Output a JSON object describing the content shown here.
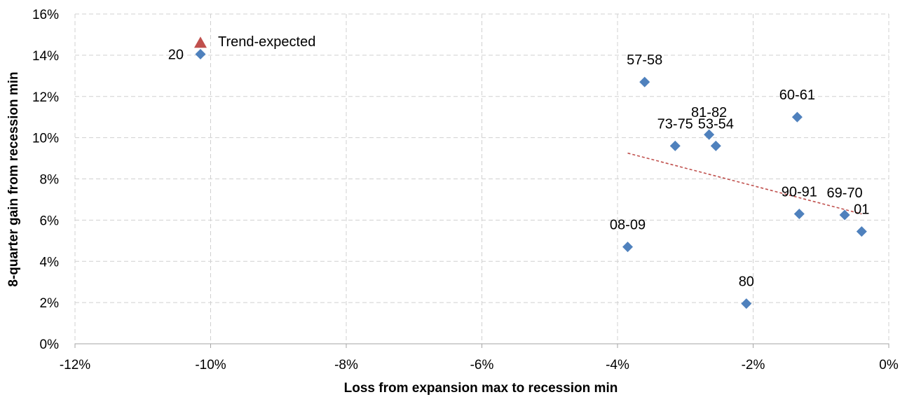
{
  "chart_data": {
    "type": "scatter",
    "xlabel": "Loss from expansion max to recession min",
    "ylabel": "8-quarter gain from recession min",
    "xlim": [
      -12,
      0
    ],
    "ylim": [
      0,
      16
    ],
    "x_ticks": [
      -12,
      -10,
      -8,
      -6,
      -4,
      -2,
      0
    ],
    "y_ticks": [
      0,
      2,
      4,
      6,
      8,
      10,
      12,
      14,
      16
    ],
    "x_tick_labels": [
      "-12%",
      "-10%",
      "-8%",
      "-6%",
      "-4%",
      "-2%",
      "0%"
    ],
    "y_tick_labels": [
      "0%",
      "2%",
      "4%",
      "6%",
      "8%",
      "10%",
      "12%",
      "14%",
      "16%"
    ],
    "grid": true,
    "marker_color": "#4F81BD",
    "trend_color": "#C0504D",
    "points": [
      {
        "label": "20",
        "x": -10.15,
        "y": 14.05
      },
      {
        "label": "57-58",
        "x": -3.6,
        "y": 12.7
      },
      {
        "label": "73-75",
        "x": -3.15,
        "y": 9.6
      },
      {
        "label": "81-82",
        "x": -2.65,
        "y": 10.15
      },
      {
        "label": "53-54",
        "x": -2.55,
        "y": 9.6
      },
      {
        "label": "60-61",
        "x": -1.35,
        "y": 11.0
      },
      {
        "label": "08-09",
        "x": -3.85,
        "y": 4.7
      },
      {
        "label": "80",
        "x": -2.1,
        "y": 1.95
      },
      {
        "label": "90-91",
        "x": -1.32,
        "y": 6.3
      },
      {
        "label": "69-70",
        "x": -0.65,
        "y": 6.25
      },
      {
        "label": "01",
        "x": -0.4,
        "y": 5.45
      }
    ],
    "trend_expected": {
      "label": "Trend-expected",
      "x": -10.15,
      "y": 14.6
    },
    "trendline": {
      "x": [
        -3.85,
        -0.4
      ],
      "y": [
        9.25,
        6.3
      ]
    }
  }
}
